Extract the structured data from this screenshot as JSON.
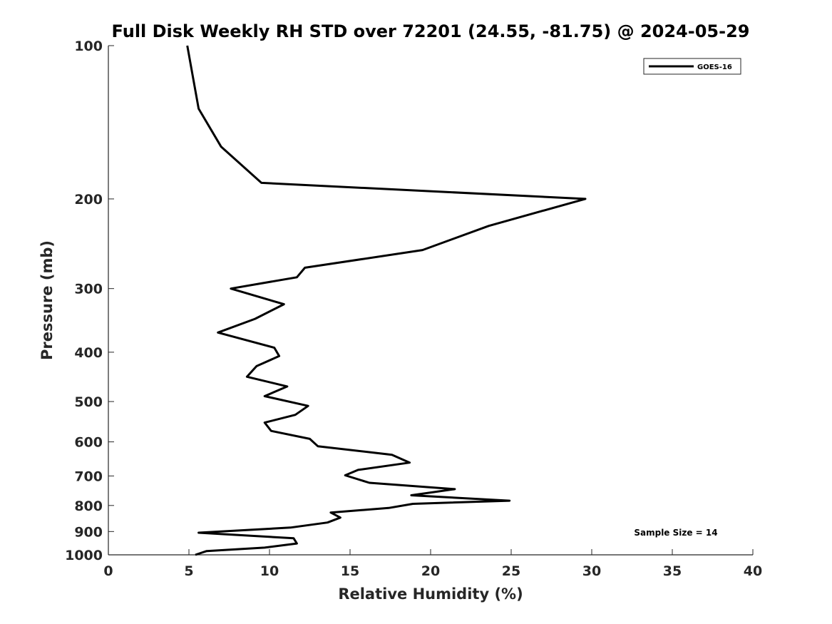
{
  "chart_data": {
    "type": "line",
    "title": "Full Disk Weekly RH STD over 72201 (24.55, -81.75) @ 2024-05-29",
    "xlabel": "Relative Humidity (%)",
    "ylabel": "Pressure (mb)",
    "xlim": [
      0,
      40
    ],
    "ylim": [
      100,
      1000
    ],
    "y_scale": "log",
    "y_inverted": true,
    "grid": false,
    "legend_position": "top-right",
    "x_ticks": [
      0,
      5,
      10,
      15,
      20,
      25,
      30,
      35,
      40
    ],
    "x_tick_labels": [
      "0",
      "5",
      "10",
      "15",
      "20",
      "25",
      "30",
      "35",
      "40"
    ],
    "y_ticks": [
      100,
      200,
      300,
      400,
      500,
      600,
      700,
      800,
      900,
      1000
    ],
    "y_tick_labels": [
      "100",
      "200",
      "300",
      "400",
      "500",
      "600",
      "700",
      "800",
      "900",
      "1000"
    ],
    "annotation": "Sample Size = 14",
    "series": [
      {
        "name": "GOES-16",
        "color": "#000000",
        "x": [
          4.9,
          5.2,
          5.6,
          7.0,
          9.5,
          29.6,
          23.6,
          19.5,
          12.2,
          11.7,
          7.6,
          10.9,
          9.1,
          6.8,
          10.3,
          10.6,
          9.2,
          8.6,
          11.1,
          9.7,
          12.4,
          11.6,
          9.7,
          10.1,
          12.5,
          13.0,
          17.6,
          18.7,
          15.5,
          14.7,
          16.2,
          21.5,
          18.8,
          24.9,
          18.9,
          17.4,
          13.8,
          14.4,
          13.6,
          11.3,
          5.6,
          11.5,
          11.7,
          9.7,
          6.1,
          5.4
        ],
        "y": [
          100,
          113,
          133,
          158,
          186,
          200,
          226,
          252,
          273,
          285,
          300,
          322,
          344,
          366,
          392,
          407,
          426,
          447,
          467,
          488,
          510,
          531,
          550,
          571,
          592,
          612,
          636,
          659,
          681,
          698,
          722,
          743,
          764,
          783,
          794,
          809,
          826,
          845,
          864,
          884,
          905,
          928,
          950,
          968,
          983,
          1000
        ]
      }
    ]
  }
}
